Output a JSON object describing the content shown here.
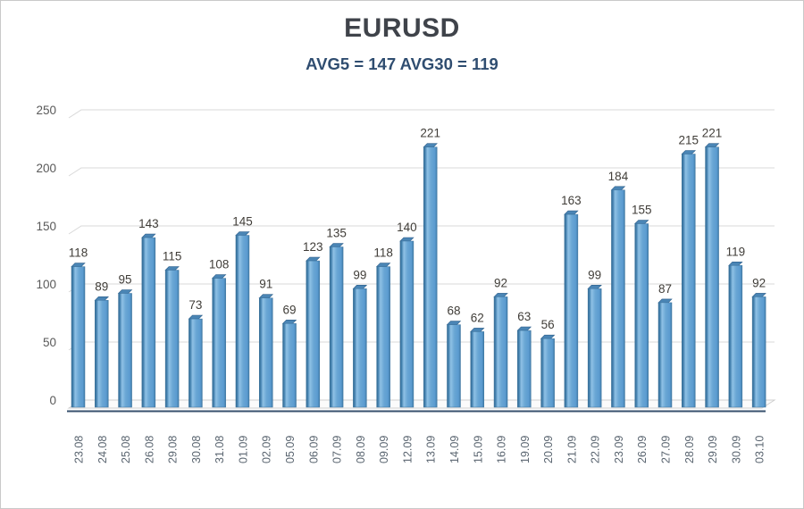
{
  "header": {
    "title": "EURUSD",
    "subtitle": "AVG5 = 147 AVG30 = 119"
  },
  "chart_data": {
    "type": "bar",
    "title": "EURUSD",
    "subtitle": "AVG5 = 147 AVG30 = 119",
    "categories": [
      "23.08",
      "24.08",
      "25.08",
      "26.08",
      "29.08",
      "30.08",
      "31.08",
      "01.09",
      "02.09",
      "05.09",
      "06.09",
      "07.09",
      "08.09",
      "09.09",
      "12.09",
      "13.09",
      "14.09",
      "15.09",
      "16.09",
      "19.09",
      "20.09",
      "21.09",
      "22.09",
      "23.09",
      "26.09",
      "27.09",
      "28.09",
      "29.09",
      "30.09",
      "03.10"
    ],
    "values": [
      118,
      89,
      95,
      143,
      115,
      73,
      108,
      145,
      91,
      69,
      123,
      135,
      99,
      118,
      140,
      221,
      68,
      62,
      92,
      63,
      56,
      163,
      99,
      184,
      155,
      87,
      215,
      221,
      119,
      92
    ],
    "avg5": 147,
    "avg30": 119,
    "xlabel": "",
    "ylabel": "",
    "ylim": [
      0,
      250
    ],
    "yticks": [
      0,
      50,
      100,
      150,
      200,
      250
    ],
    "grid": true,
    "legend": "none",
    "style": {
      "bar_body_color": "#5b9bd0",
      "bar_edge_dark": "#30688f",
      "bar_highlight": "#8fc1e5",
      "bar_cap_color": "#4a85b5",
      "grid_color": "#d8d8d8",
      "floor_fill": "#fbfbfb",
      "floor_stroke": "#cfcfcf",
      "axis_line_color": "#37506e",
      "value_label_color": "#403d38",
      "ytick_color": "#595959",
      "xtick_color": "#5a6570",
      "title_color": "#3f434a",
      "subtitle_color": "#2f4d70"
    }
  }
}
